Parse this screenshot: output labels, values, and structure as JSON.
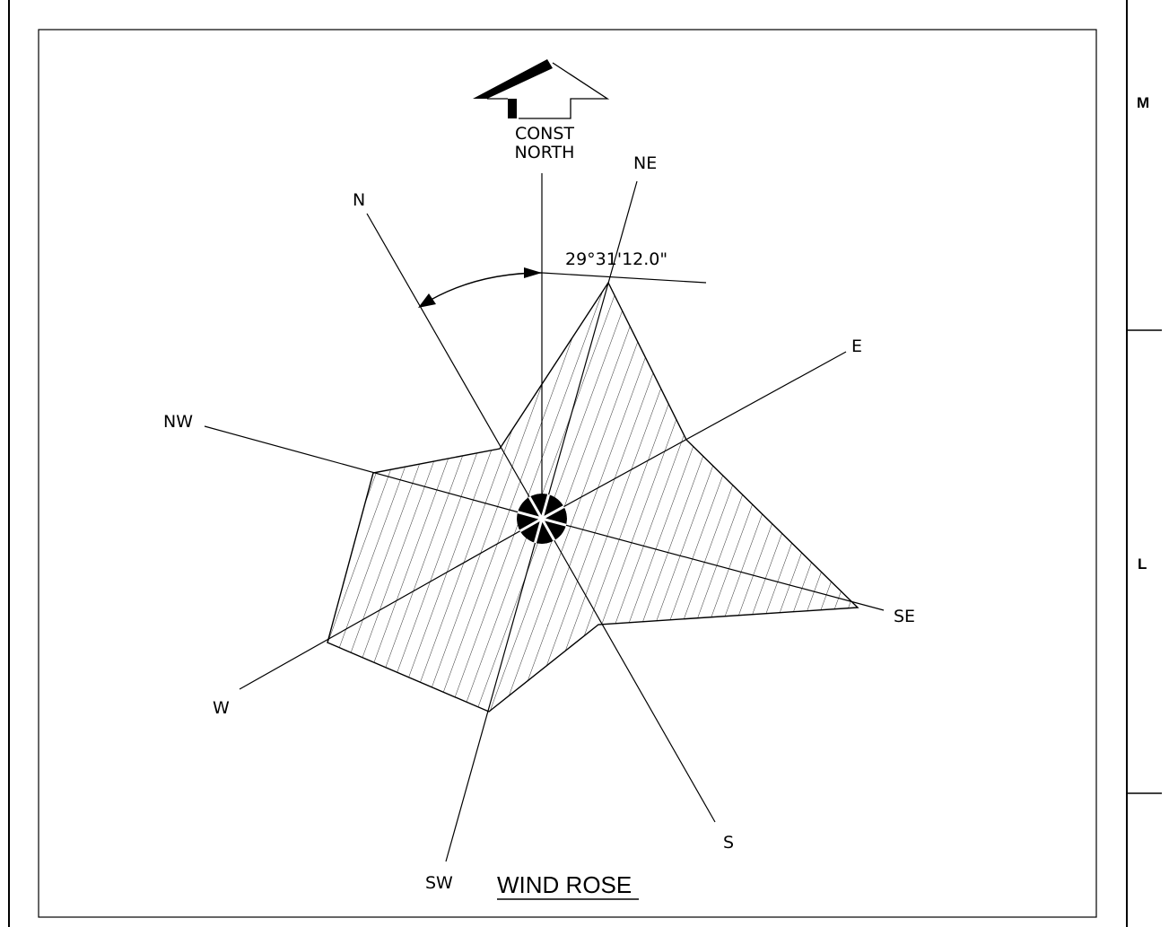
{
  "drawing": {
    "title": "WIND ROSE",
    "angle_label": "29°31'12.0\"",
    "const_north": [
      "CONST",
      "NORTH"
    ]
  },
  "directions": {
    "n": "N",
    "ne": "NE",
    "e": "E",
    "se": "SE",
    "s": "S",
    "sw": "SW",
    "w": "W",
    "nw": "NW"
  },
  "grid_refs": {
    "m": "M",
    "l": "L"
  }
}
